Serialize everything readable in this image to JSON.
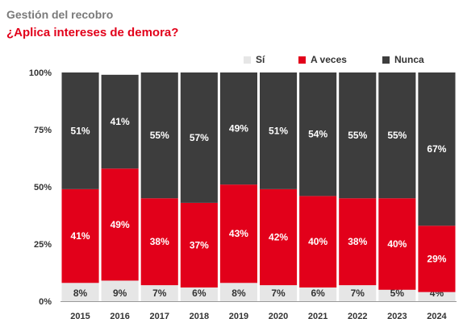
{
  "title": "Gestión del recobro",
  "subtitle": "¿Aplica intereses de demora?",
  "colors": {
    "si": "#e6e6e6",
    "aveces": "#e2001a",
    "nunca": "#3d3d3d"
  },
  "chart_data": {
    "type": "bar",
    "stacked": true,
    "categories": [
      "2015",
      "2016",
      "2017",
      "2018",
      "2019",
      "2020",
      "2021",
      "2022",
      "2023",
      "2024"
    ],
    "series": [
      {
        "name": "Sí",
        "values": [
          8,
          9,
          7,
          6,
          8,
          7,
          6,
          7,
          5,
          4
        ]
      },
      {
        "name": "A veces",
        "values": [
          41,
          49,
          38,
          37,
          43,
          42,
          40,
          38,
          40,
          29
        ]
      },
      {
        "name": "Nunca",
        "values": [
          51,
          41,
          55,
          57,
          49,
          51,
          54,
          55,
          55,
          67
        ]
      }
    ],
    "ylim": [
      0,
      100
    ],
    "yticks": [
      "0%",
      "25%",
      "50%",
      "75%",
      "100%"
    ],
    "ytick_values": [
      0,
      25,
      50,
      75,
      100
    ],
    "legend_position": "top-right",
    "value_suffix": "%"
  }
}
